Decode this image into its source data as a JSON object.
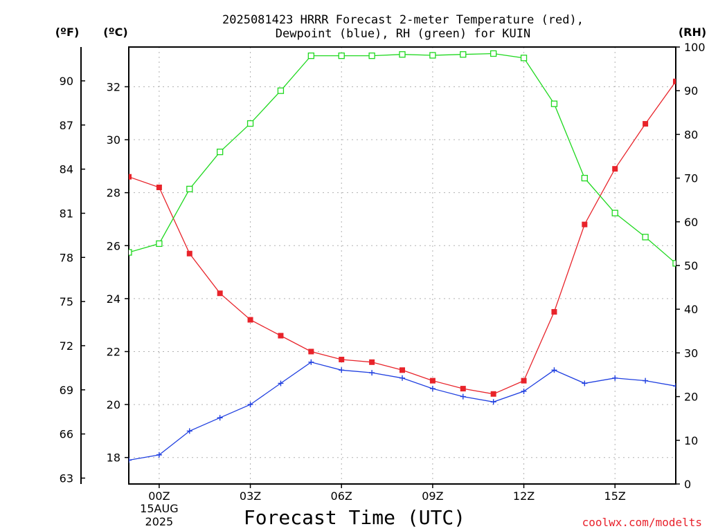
{
  "title": {
    "line1": "2025081423 HRRR Forecast 2-meter Temperature (red),",
    "line2": "Dewpoint (blue), RH (green) for KUIN"
  },
  "units": {
    "fahrenheit": "(ºF)",
    "celsius": "(ºC)",
    "rh": "(RH)"
  },
  "credit": "coolwx.com/modelts",
  "colors": {
    "temperature": "#e8232a",
    "dewpoint": "#1f3fe0",
    "rh": "#1ed81e",
    "grid": "#b0b0b0"
  },
  "chart_data": {
    "type": "line",
    "title": "2025081423 HRRR Forecast 2-meter Temperature (red), Dewpoint (blue), RH (green) for KUIN",
    "xlabel": "Forecast Time (UTC)",
    "x_hours_utc_from_2025-08-15_00Z": [
      -1,
      0,
      1,
      2,
      3,
      4,
      5,
      6,
      7,
      8,
      9,
      10,
      11,
      12,
      13,
      14,
      15,
      16,
      17
    ],
    "x_tick_labels": [
      {
        "hour": 0,
        "label": "00Z",
        "sub1": "15AUG",
        "sub2": "2025"
      },
      {
        "hour": 3,
        "label": "03Z"
      },
      {
        "hour": 6,
        "label": "06Z"
      },
      {
        "hour": 9,
        "label": "09Z"
      },
      {
        "hour": 12,
        "label": "12Z"
      },
      {
        "hour": 15,
        "label": "15Z"
      }
    ],
    "xlim": [
      -1,
      17
    ],
    "y_celsius_ticks": [
      18,
      20,
      22,
      24,
      26,
      28,
      30,
      32
    ],
    "y_fahrenheit_ticks": [
      63,
      66,
      69,
      72,
      75,
      78,
      81,
      84,
      87,
      90
    ],
    "y_rh_ticks": [
      0,
      10,
      20,
      30,
      40,
      50,
      60,
      70,
      80,
      90,
      100
    ],
    "ylim_celsius": [
      17.0,
      33.5
    ],
    "ylim_rh": [
      0,
      100
    ],
    "grid": true,
    "series": [
      {
        "name": "Temperature",
        "axis": "celsius",
        "marker": "square-filled",
        "values": [
          28.6,
          28.2,
          25.7,
          24.2,
          23.2,
          22.6,
          22.0,
          21.7,
          21.6,
          21.3,
          20.9,
          20.6,
          20.4,
          20.9,
          23.5,
          26.8,
          28.9,
          30.6,
          32.2
        ]
      },
      {
        "name": "Dewpoint",
        "axis": "celsius",
        "marker": "plus",
        "values": [
          17.9,
          18.1,
          19.0,
          19.5,
          20.0,
          20.8,
          21.6,
          21.3,
          21.2,
          21.0,
          20.6,
          20.3,
          20.1,
          20.5,
          21.3,
          20.8,
          21.0,
          20.9,
          20.7
        ]
      },
      {
        "name": "RH",
        "axis": "rh",
        "marker": "square-open",
        "values": [
          53.0,
          55.0,
          67.5,
          76.0,
          82.5,
          90.0,
          98.0,
          98.0,
          98.0,
          98.3,
          98.1,
          98.3,
          98.5,
          97.5,
          87.0,
          70.0,
          62.0,
          56.5,
          50.5
        ]
      }
    ]
  }
}
